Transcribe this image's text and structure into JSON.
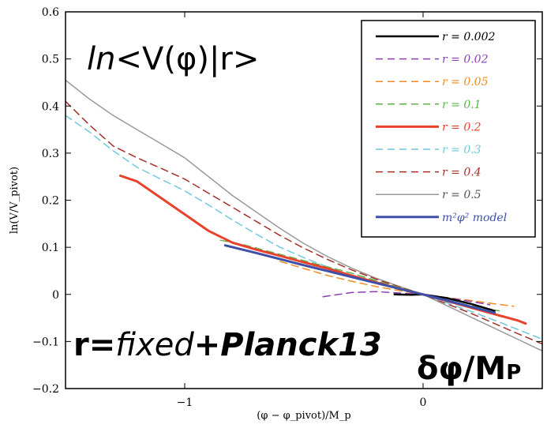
{
  "chart_data": {
    "type": "line",
    "xlabel": "(φ − φ_pivot)/M_p",
    "ylabel": "ln(V/V_pivot)",
    "xlim": [
      -1.5,
      0.5
    ],
    "ylim": [
      -0.2,
      0.6
    ],
    "x_ticks": [
      -1,
      0
    ],
    "x_tick_labels": [
      "−1",
      "0"
    ],
    "y_ticks": [
      -0.2,
      -0.1,
      0,
      0.1,
      0.2,
      0.3,
      0.4,
      0.5,
      0.6
    ],
    "y_tick_labels": [
      "−0.2",
      "−0.1",
      "0",
      "0.1",
      "0.2",
      "0.3",
      "0.4",
      "0.5",
      "0.6"
    ],
    "grid": false,
    "legend_position": "top-right",
    "annotations": {
      "top_left_prefix": "ln",
      "top_left_rest": "<V(φ)|r>",
      "bottom_left_r": "r=",
      "bottom_left_fixed": "fixed",
      "bottom_left_rest": "+Planck13",
      "bottom_right": "δφ/M",
      "bottom_right_sub": "P"
    },
    "series": [
      {
        "name": "r = 0.002",
        "color": "#000000",
        "dash": "solid",
        "width": 2.5,
        "points": [
          [
            -0.12,
            0.0
          ],
          [
            -0.05,
            -0.001
          ],
          [
            0,
            0
          ],
          [
            0.1,
            -0.008
          ],
          [
            0.2,
            -0.02
          ],
          [
            0.3,
            -0.035
          ]
        ]
      },
      {
        "name": "r = 0.02",
        "color": "#8b3fb3",
        "dash": "dashed",
        "width": 1.5,
        "points": [
          [
            -0.42,
            -0.005
          ],
          [
            -0.3,
            0.004
          ],
          [
            -0.2,
            0.006
          ],
          [
            -0.1,
            0.003
          ],
          [
            0,
            0
          ],
          [
            0.1,
            -0.007
          ],
          [
            0.2,
            -0.015
          ],
          [
            0.28,
            -0.022
          ]
        ]
      },
      {
        "name": "r = 0.05",
        "color": "#f08a24",
        "dash": "dashed",
        "width": 1.5,
        "points": [
          [
            -0.6,
            0.07
          ],
          [
            -0.5,
            0.055
          ],
          [
            -0.4,
            0.04
          ],
          [
            -0.3,
            0.028
          ],
          [
            -0.2,
            0.017
          ],
          [
            -0.1,
            0.008
          ],
          [
            0,
            0
          ],
          [
            0.1,
            -0.007
          ],
          [
            0.2,
            -0.013
          ],
          [
            0.3,
            -0.02
          ],
          [
            0.38,
            -0.025
          ]
        ]
      },
      {
        "name": "r = 0.1",
        "color": "#5db54a",
        "dash": "dashed",
        "width": 1.5,
        "points": [
          [
            -0.85,
            0.115
          ],
          [
            -0.75,
            0.105
          ],
          [
            -0.6,
            0.085
          ],
          [
            -0.45,
            0.065
          ],
          [
            -0.3,
            0.045
          ],
          [
            -0.15,
            0.022
          ],
          [
            0,
            0
          ],
          [
            0.1,
            -0.012
          ],
          [
            0.2,
            -0.024
          ],
          [
            0.32,
            -0.035
          ]
        ]
      },
      {
        "name": "r = 0.2",
        "color": "#e8412c",
        "dash": "solid",
        "width": 3,
        "points": [
          [
            -1.27,
            0.252
          ],
          [
            -1.2,
            0.24
          ],
          [
            -1.1,
            0.205
          ],
          [
            -1.0,
            0.17
          ],
          [
            -0.9,
            0.135
          ],
          [
            -0.8,
            0.11
          ],
          [
            -0.7,
            0.095
          ],
          [
            -0.6,
            0.082
          ],
          [
            -0.5,
            0.068
          ],
          [
            -0.4,
            0.055
          ],
          [
            -0.3,
            0.04
          ],
          [
            -0.2,
            0.026
          ],
          [
            -0.1,
            0.012
          ],
          [
            0,
            0
          ],
          [
            0.1,
            -0.014
          ],
          [
            0.2,
            -0.028
          ],
          [
            0.3,
            -0.042
          ],
          [
            0.4,
            -0.056
          ],
          [
            0.43,
            -0.062
          ]
        ]
      },
      {
        "name": "r = 0.3",
        "color": "#6ec9de",
        "dash": "dashed",
        "width": 1.5,
        "points": [
          [
            -1.5,
            0.38
          ],
          [
            -1.4,
            0.345
          ],
          [
            -1.3,
            0.305
          ],
          [
            -1.2,
            0.27
          ],
          [
            -1.1,
            0.245
          ],
          [
            -1.0,
            0.22
          ],
          [
            -0.9,
            0.19
          ],
          [
            -0.8,
            0.158
          ],
          [
            -0.7,
            0.128
          ],
          [
            -0.6,
            0.1
          ],
          [
            -0.5,
            0.078
          ],
          [
            -0.4,
            0.058
          ],
          [
            -0.3,
            0.04
          ],
          [
            -0.2,
            0.025
          ],
          [
            -0.1,
            0.012
          ],
          [
            0,
            0
          ],
          [
            0.1,
            -0.018
          ],
          [
            0.2,
            -0.036
          ],
          [
            0.3,
            -0.055
          ],
          [
            0.4,
            -0.075
          ],
          [
            0.5,
            -0.095
          ]
        ]
      },
      {
        "name": "r = 0.4",
        "color": "#a6302a",
        "dash": "dashed",
        "width": 1.5,
        "points": [
          [
            -1.5,
            0.41
          ],
          [
            -1.4,
            0.36
          ],
          [
            -1.3,
            0.315
          ],
          [
            -1.2,
            0.29
          ],
          [
            -1.1,
            0.268
          ],
          [
            -1.0,
            0.245
          ],
          [
            -0.9,
            0.215
          ],
          [
            -0.8,
            0.185
          ],
          [
            -0.7,
            0.155
          ],
          [
            -0.6,
            0.125
          ],
          [
            -0.5,
            0.098
          ],
          [
            -0.4,
            0.074
          ],
          [
            -0.3,
            0.052
          ],
          [
            -0.2,
            0.033
          ],
          [
            -0.1,
            0.016
          ],
          [
            0,
            0
          ],
          [
            0.1,
            -0.02
          ],
          [
            0.2,
            -0.04
          ],
          [
            0.3,
            -0.062
          ],
          [
            0.4,
            -0.084
          ],
          [
            0.5,
            -0.105
          ]
        ]
      },
      {
        "name": "r = 0.5",
        "color": "#999999",
        "dash": "solid",
        "width": 1.5,
        "points": [
          [
            -1.5,
            0.455
          ],
          [
            -1.4,
            0.415
          ],
          [
            -1.3,
            0.38
          ],
          [
            -1.2,
            0.35
          ],
          [
            -1.1,
            0.32
          ],
          [
            -1.0,
            0.29
          ],
          [
            -0.9,
            0.25
          ],
          [
            -0.8,
            0.21
          ],
          [
            -0.7,
            0.175
          ],
          [
            -0.6,
            0.14
          ],
          [
            -0.5,
            0.108
          ],
          [
            -0.4,
            0.08
          ],
          [
            -0.3,
            0.056
          ],
          [
            -0.2,
            0.035
          ],
          [
            -0.1,
            0.017
          ],
          [
            0,
            0
          ],
          [
            0.1,
            -0.024
          ],
          [
            0.2,
            -0.048
          ],
          [
            0.3,
            -0.072
          ],
          [
            0.4,
            -0.096
          ],
          [
            0.5,
            -0.12
          ]
        ]
      },
      {
        "name": "m²φ² model",
        "color": "#3e4fa8",
        "dash": "solid",
        "width": 3,
        "points": [
          [
            -0.83,
            0.104
          ],
          [
            -0.7,
            0.088
          ],
          [
            -0.5,
            0.062
          ],
          [
            -0.3,
            0.037
          ],
          [
            -0.1,
            0.012
          ],
          [
            0,
            0
          ],
          [
            0.1,
            -0.013
          ],
          [
            0.2,
            -0.026
          ],
          [
            0.3,
            -0.039
          ]
        ]
      }
    ]
  }
}
